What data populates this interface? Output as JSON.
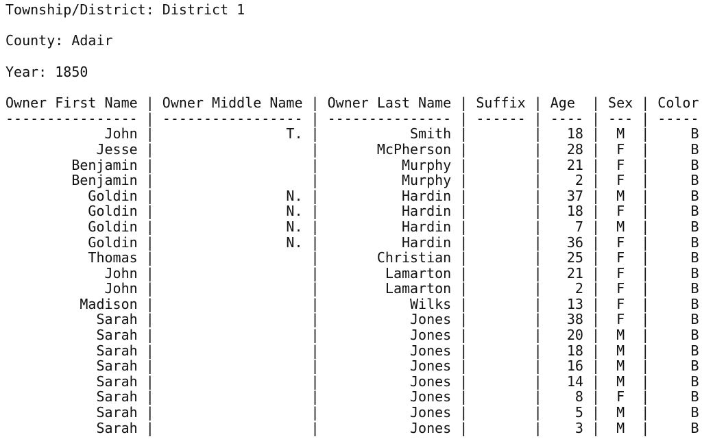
{
  "meta": [
    {
      "label": "Township/District",
      "value": "District 1"
    },
    {
      "label": "County",
      "value": "Adair"
    },
    {
      "label": "Year",
      "value": "1850"
    }
  ],
  "table": {
    "columns": [
      {
        "key": "first",
        "label": "Owner First Name",
        "width": 16,
        "align": "right"
      },
      {
        "key": "middle",
        "label": "Owner Middle Name",
        "width": 17,
        "align": "right"
      },
      {
        "key": "last",
        "label": "Owner Last Name",
        "width": 15,
        "align": "right"
      },
      {
        "key": "suffix",
        "label": "Suffix",
        "width": 6,
        "align": "right"
      },
      {
        "key": "age",
        "label": "Age",
        "width": 4,
        "align": "right"
      },
      {
        "key": "sex",
        "label": "Sex",
        "width": 3,
        "align": "center"
      },
      {
        "key": "color",
        "label": "Color",
        "width": 5,
        "align": "right"
      }
    ],
    "rows": [
      {
        "first": "John",
        "middle": "T.",
        "last": "Smith",
        "suffix": "",
        "age": "18",
        "sex": "M",
        "color": "B"
      },
      {
        "first": "Jesse",
        "middle": "",
        "last": "McPherson",
        "suffix": "",
        "age": "28",
        "sex": "F",
        "color": "B"
      },
      {
        "first": "Benjamin",
        "middle": "",
        "last": "Murphy",
        "suffix": "",
        "age": "21",
        "sex": "F",
        "color": "B"
      },
      {
        "first": "Benjamin",
        "middle": "",
        "last": "Murphy",
        "suffix": "",
        "age": "2",
        "sex": "F",
        "color": "B"
      },
      {
        "first": "Goldin",
        "middle": "N.",
        "last": "Hardin",
        "suffix": "",
        "age": "37",
        "sex": "M",
        "color": "B"
      },
      {
        "first": "Goldin",
        "middle": "N.",
        "last": "Hardin",
        "suffix": "",
        "age": "18",
        "sex": "F",
        "color": "B"
      },
      {
        "first": "Goldin",
        "middle": "N.",
        "last": "Hardin",
        "suffix": "",
        "age": "7",
        "sex": "M",
        "color": "B"
      },
      {
        "first": "Goldin",
        "middle": "N.",
        "last": "Hardin",
        "suffix": "",
        "age": "36",
        "sex": "F",
        "color": "B"
      },
      {
        "first": "Thomas",
        "middle": "",
        "last": "Christian",
        "suffix": "",
        "age": "25",
        "sex": "F",
        "color": "B"
      },
      {
        "first": "John",
        "middle": "",
        "last": "Lamarton",
        "suffix": "",
        "age": "21",
        "sex": "F",
        "color": "B"
      },
      {
        "first": "John",
        "middle": "",
        "last": "Lamarton",
        "suffix": "",
        "age": "2",
        "sex": "F",
        "color": "B"
      },
      {
        "first": "Madison",
        "middle": "",
        "last": "Wilks",
        "suffix": "",
        "age": "13",
        "sex": "F",
        "color": "B"
      },
      {
        "first": "Sarah",
        "middle": "",
        "last": "Jones",
        "suffix": "",
        "age": "38",
        "sex": "F",
        "color": "B"
      },
      {
        "first": "Sarah",
        "middle": "",
        "last": "Jones",
        "suffix": "",
        "age": "20",
        "sex": "M",
        "color": "B"
      },
      {
        "first": "Sarah",
        "middle": "",
        "last": "Jones",
        "suffix": "",
        "age": "18",
        "sex": "M",
        "color": "B"
      },
      {
        "first": "Sarah",
        "middle": "",
        "last": "Jones",
        "suffix": "",
        "age": "16",
        "sex": "M",
        "color": "B"
      },
      {
        "first": "Sarah",
        "middle": "",
        "last": "Jones",
        "suffix": "",
        "age": "14",
        "sex": "M",
        "color": "B"
      },
      {
        "first": "Sarah",
        "middle": "",
        "last": "Jones",
        "suffix": "",
        "age": "8",
        "sex": "F",
        "color": "B"
      },
      {
        "first": "Sarah",
        "middle": "",
        "last": "Jones",
        "suffix": "",
        "age": "5",
        "sex": "M",
        "color": "B"
      },
      {
        "first": "Sarah",
        "middle": "",
        "last": "Jones",
        "suffix": "",
        "age": "3",
        "sex": "M",
        "color": "B"
      }
    ]
  }
}
